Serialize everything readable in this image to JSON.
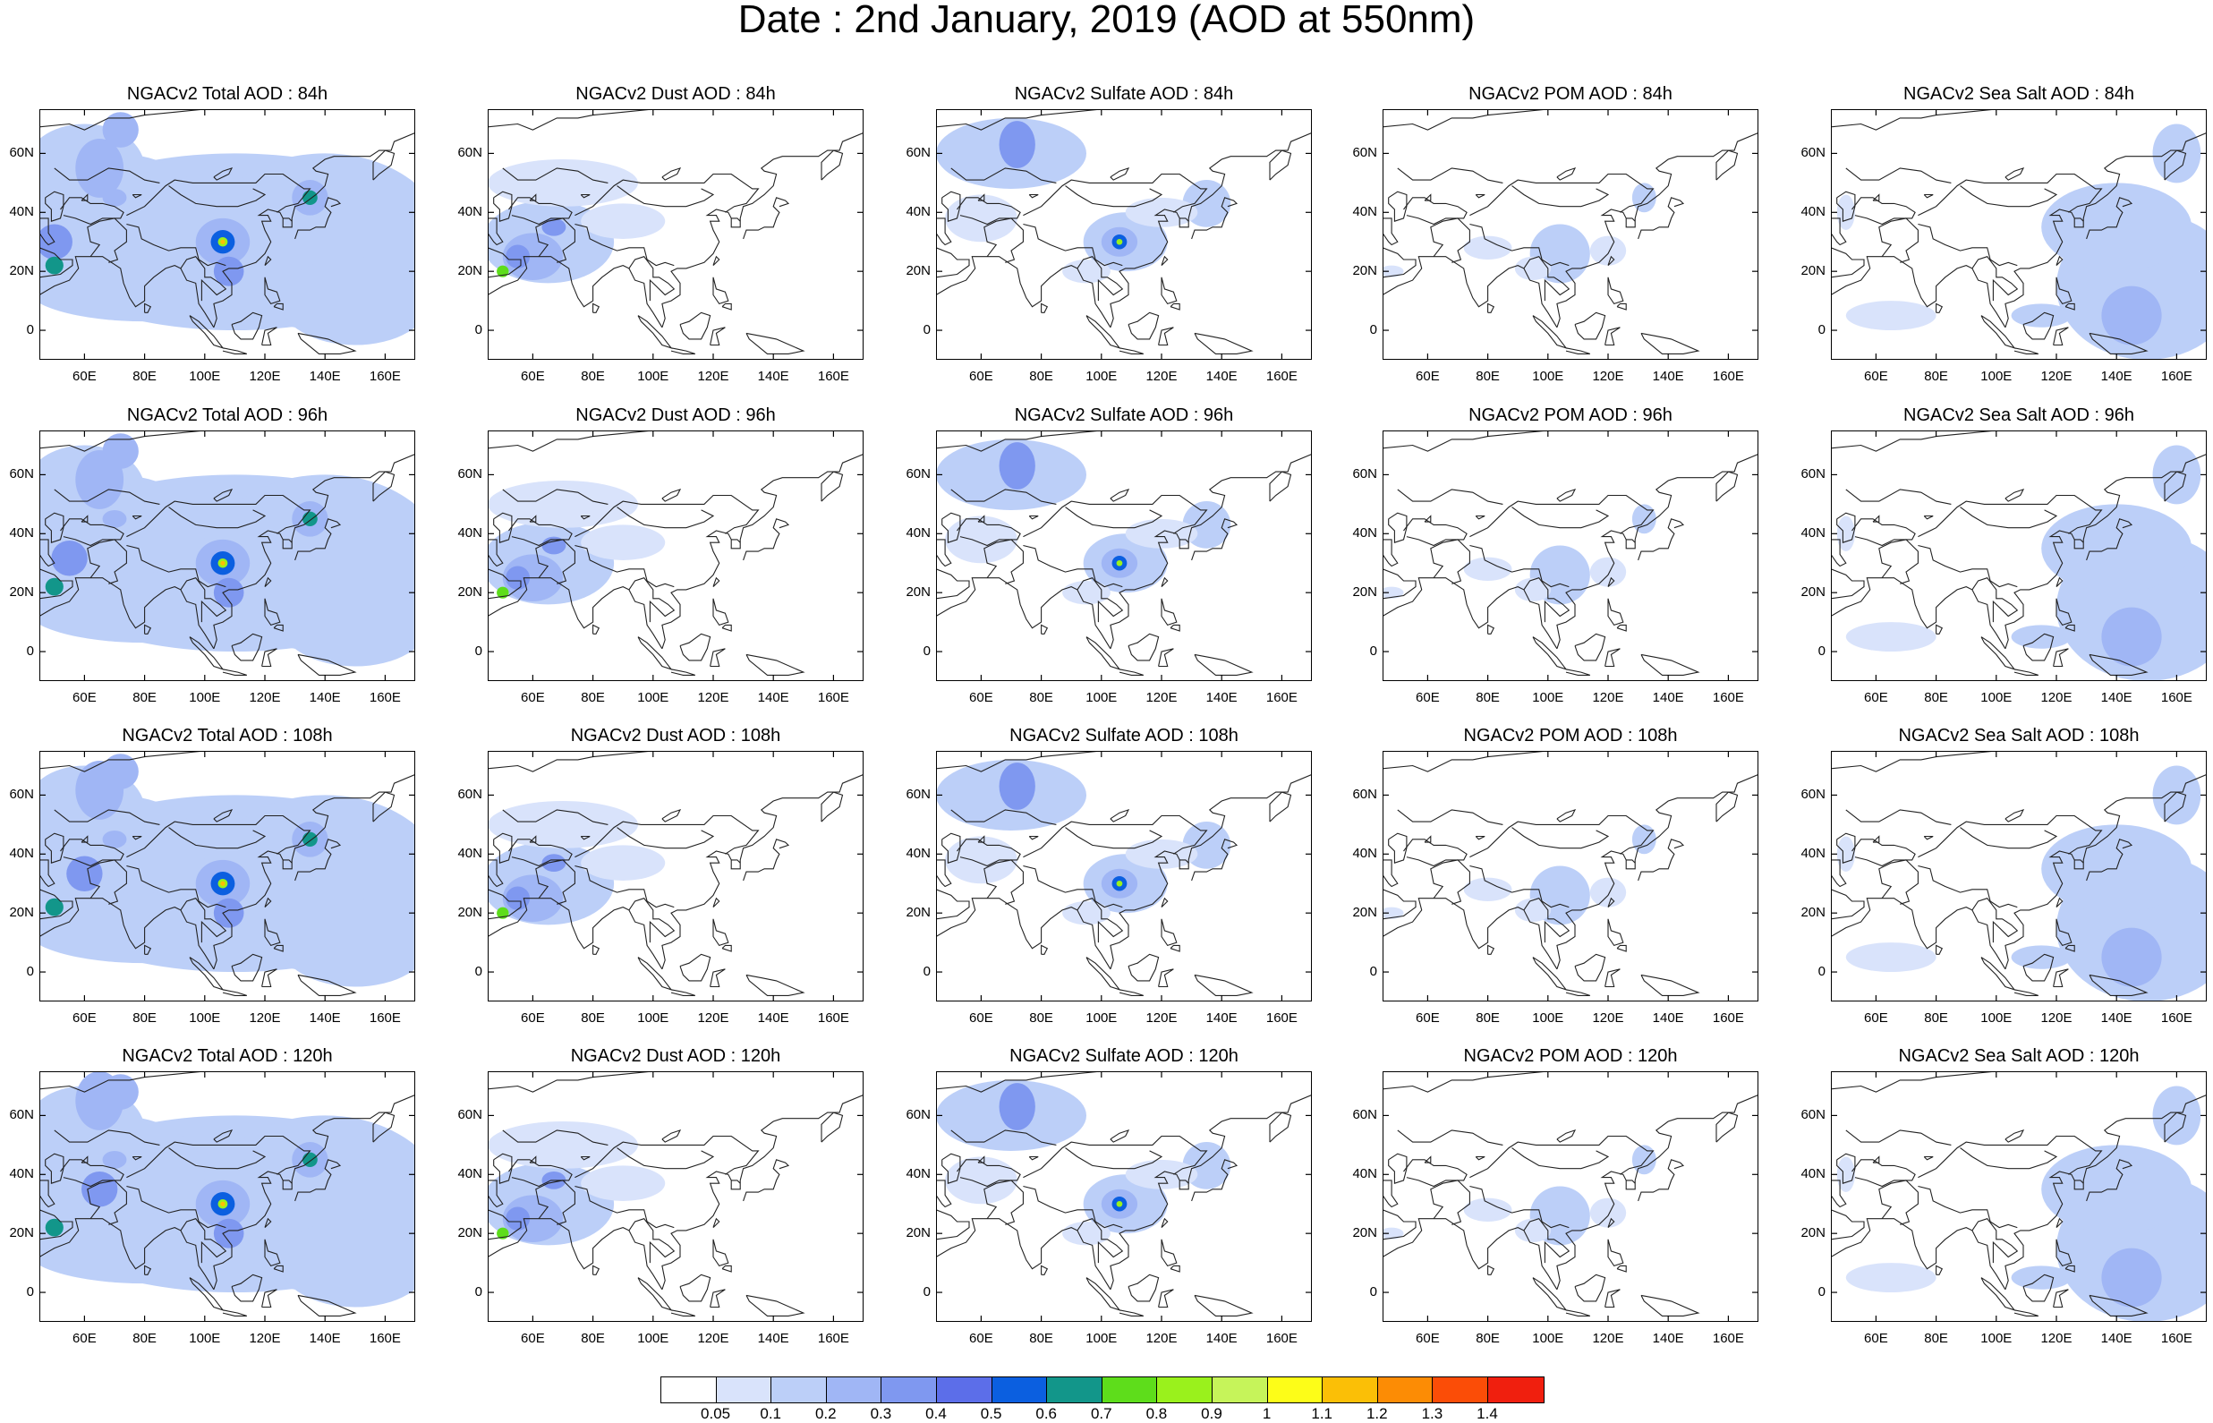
{
  "title": "Date : 2nd January, 2019 (AOD at 550nm)",
  "lat_labels": [
    "60N",
    "40N",
    "20N",
    "0"
  ],
  "lon_labels": [
    "60E",
    "80E",
    "100E",
    "120E",
    "140E",
    "160E"
  ],
  "colorbar": {
    "labels": [
      "0.05",
      "0.1",
      "0.2",
      "0.3",
      "0.4",
      "0.5",
      "0.6",
      "0.7",
      "0.8",
      "0.9",
      "1",
      "1.1",
      "1.2",
      "1.3",
      "1.4"
    ],
    "colors": [
      "#ffffff",
      "#d9e3fb",
      "#bccff8",
      "#a0b6f5",
      "#7f98f0",
      "#5c6ee9",
      "#0b5fe0",
      "#12968a",
      "#5edd1b",
      "#9af11c",
      "#c6f45a",
      "#fdfd18",
      "#fbbf06",
      "#fc8c05",
      "#fb4d07",
      "#f01f0e"
    ]
  },
  "panels": [
    {
      "title": "NGACv2 Total AOD : 84h",
      "species": "total",
      "hour": 84
    },
    {
      "title": "NGACv2 Dust AOD : 84h",
      "species": "dust",
      "hour": 84
    },
    {
      "title": "NGACv2 Sulfate AOD : 84h",
      "species": "sulfate",
      "hour": 84
    },
    {
      "title": "NGACv2 POM AOD : 84h",
      "species": "pom",
      "hour": 84
    },
    {
      "title": "NGACv2 Sea Salt AOD : 84h",
      "species": "seasalt",
      "hour": 84
    },
    {
      "title": "NGACv2 Total AOD : 96h",
      "species": "total",
      "hour": 96
    },
    {
      "title": "NGACv2 Dust AOD : 96h",
      "species": "dust",
      "hour": 96
    },
    {
      "title": "NGACv2 Sulfate AOD : 96h",
      "species": "sulfate",
      "hour": 96
    },
    {
      "title": "NGACv2 POM AOD : 96h",
      "species": "pom",
      "hour": 96
    },
    {
      "title": "NGACv2 Sea Salt AOD : 96h",
      "species": "seasalt",
      "hour": 96
    },
    {
      "title": "NGACv2 Total AOD : 108h",
      "species": "total",
      "hour": 108
    },
    {
      "title": "NGACv2 Dust AOD : 108h",
      "species": "dust",
      "hour": 108
    },
    {
      "title": "NGACv2 Sulfate AOD : 108h",
      "species": "sulfate",
      "hour": 108
    },
    {
      "title": "NGACv2 POM AOD : 108h",
      "species": "pom",
      "hour": 108
    },
    {
      "title": "NGACv2 Sea Salt AOD : 108h",
      "species": "seasalt",
      "hour": 108
    },
    {
      "title": "NGACv2 Total AOD : 120h",
      "species": "total",
      "hour": 120
    },
    {
      "title": "NGACv2 Dust AOD : 120h",
      "species": "dust",
      "hour": 120
    },
    {
      "title": "NGACv2 Sulfate AOD : 120h",
      "species": "sulfate",
      "hour": 120
    },
    {
      "title": "NGACv2 POM AOD : 120h",
      "species": "pom",
      "hour": 120
    },
    {
      "title": "NGACv2 Sea Salt  AOD : 120h",
      "species": "seasalt",
      "hour": 120
    }
  ]
}
